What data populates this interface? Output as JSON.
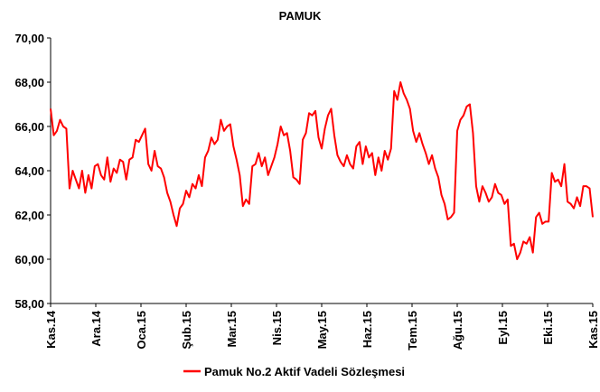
{
  "chart_data": {
    "type": "line",
    "title": "PAMUK",
    "xlabel": "",
    "ylabel": "",
    "ylim": [
      58,
      70
    ],
    "yticks": [
      58,
      60,
      62,
      64,
      66,
      68,
      70
    ],
    "ytick_labels": [
      "58,00",
      "60,00",
      "62,00",
      "64,00",
      "66,00",
      "68,00",
      "70,00"
    ],
    "xtick_labels": [
      "Kas.14",
      "Ara.14",
      "Oca.15",
      "Şub.15",
      "Mar.15",
      "Nis.15",
      "May.15",
      "Haz.15",
      "Tem.15",
      "Ağu.15",
      "Eyl.15",
      "Eki.15",
      "Kas.15"
    ],
    "grid": false,
    "legend": "bottom",
    "series_color": "#ff0000",
    "series": [
      {
        "name": "Pamuk No.2 Aktif Vadeli Sözleşmesi",
        "values": [
          66.8,
          65.6,
          65.8,
          66.3,
          66.0,
          65.9,
          63.2,
          64.0,
          63.6,
          63.2,
          64.0,
          63.0,
          63.8,
          63.2,
          64.2,
          64.3,
          63.8,
          63.6,
          64.6,
          63.5,
          64.1,
          63.9,
          64.5,
          64.4,
          63.6,
          64.5,
          64.6,
          65.4,
          65.3,
          65.6,
          65.9,
          64.3,
          64.0,
          64.9,
          64.2,
          64.1,
          63.7,
          63.0,
          62.6,
          62.0,
          61.5,
          62.3,
          62.5,
          63.1,
          62.8,
          63.4,
          63.2,
          63.8,
          63.3,
          64.6,
          64.9,
          65.5,
          65.2,
          65.4,
          66.3,
          65.8,
          66.0,
          66.1,
          65.1,
          64.5,
          63.8,
          62.4,
          62.7,
          62.5,
          64.2,
          64.3,
          64.8,
          64.2,
          64.6,
          63.8,
          64.2,
          64.6,
          65.2,
          66.0,
          65.6,
          65.7,
          64.9,
          63.7,
          63.6,
          63.4,
          65.4,
          65.7,
          66.6,
          66.5,
          66.7,
          65.5,
          65.0,
          65.9,
          66.5,
          66.8,
          65.6,
          64.7,
          64.4,
          64.2,
          64.7,
          64.3,
          64.1,
          65.1,
          65.3,
          64.3,
          65.1,
          64.6,
          64.8,
          63.8,
          64.6,
          64.0,
          64.9,
          64.5,
          65.0,
          67.6,
          67.2,
          68.0,
          67.5,
          67.2,
          66.8,
          65.8,
          65.3,
          65.7,
          65.2,
          64.8,
          64.3,
          64.7,
          64.1,
          63.7,
          62.9,
          62.5,
          61.8,
          61.9,
          62.1,
          65.8,
          66.3,
          66.5,
          66.9,
          67.0,
          65.7,
          63.3,
          62.6,
          63.3,
          63.0,
          62.6,
          62.8,
          63.4,
          63.0,
          62.9,
          62.5,
          62.7,
          60.6,
          60.7,
          60.0,
          60.3,
          60.8,
          60.7,
          61.0,
          60.3,
          61.9,
          62.1,
          61.6,
          61.7,
          61.7,
          63.9,
          63.5,
          63.6,
          63.3,
          64.3,
          62.6,
          62.5,
          62.3,
          62.8,
          62.4,
          63.3,
          63.3,
          63.2,
          61.9
        ]
      }
    ]
  }
}
